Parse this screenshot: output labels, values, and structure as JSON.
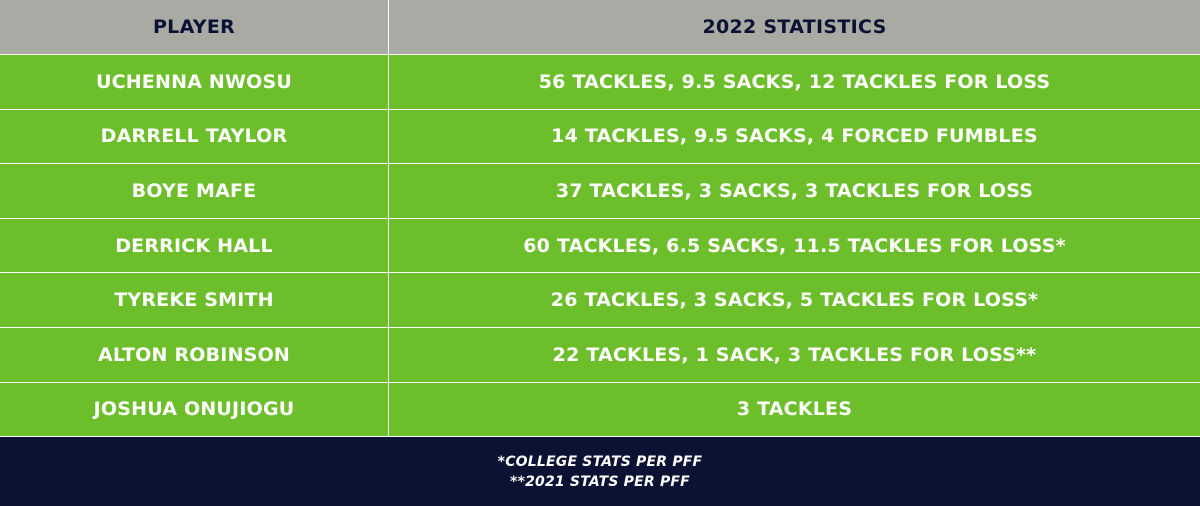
{
  "header": {
    "player": "PLAYER",
    "stats": "2022 STATISTICS"
  },
  "rows": [
    {
      "player": "UCHENNA NWOSU",
      "stats": "56 TACKLES, 9.5 SACKS, 12 TACKLES FOR LOSS"
    },
    {
      "player": "DARRELL TAYLOR",
      "stats": "14 TACKLES, 9.5 SACKS, 4 FORCED FUMBLES"
    },
    {
      "player": "BOYE MAFE",
      "stats": "37 TACKLES, 3 SACKS, 3 TACKLES FOR LOSS"
    },
    {
      "player": "DERRICK HALL",
      "stats": "60 TACKLES, 6.5 SACKS, 11.5 TACKLES FOR LOSS*"
    },
    {
      "player": "TYREKE SMITH",
      "stats": "26 TACKLES, 3 SACKS, 5 TACKLES FOR LOSS*"
    },
    {
      "player": "ALTON ROBINSON",
      "stats": "22 TACKLES, 1 SACK, 3 TACKLES FOR LOSS**"
    },
    {
      "player": "JOSHUA ONUJIOGU",
      "stats": "3 TACKLES"
    }
  ],
  "footer": {
    "note1": "*COLLEGE STATS PER PFF",
    "note2": "**2021 STATS PER PFF"
  },
  "colors": {
    "header_bg": "#a9aaa3",
    "header_text": "#0b1233",
    "row_bg": "#6cbf2b",
    "footer_bg": "#0b1233"
  }
}
